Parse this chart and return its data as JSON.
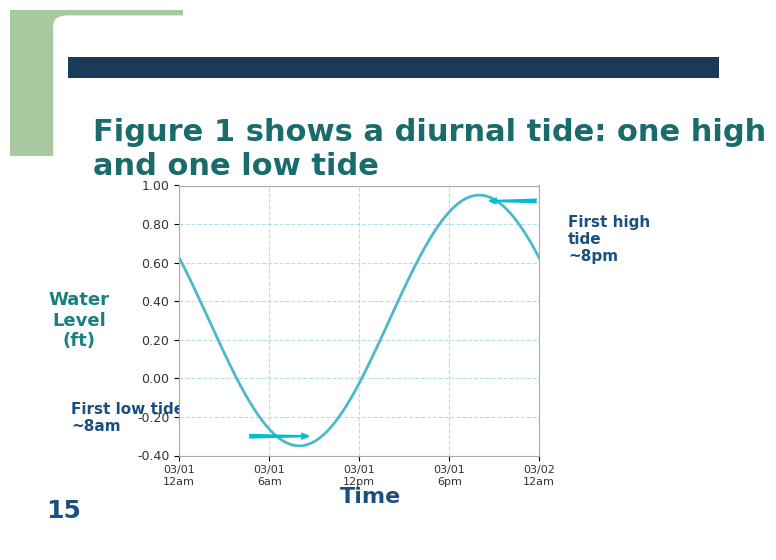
{
  "title": "Figure 1 shows a diurnal tide: one high\nand one low tide",
  "title_color": "#1a6b6b",
  "title_fontsize": 22,
  "bg_color": "#ffffff",
  "slide_bg_color": "#a8c8a0",
  "header_bar_color": "#1a3a5c",
  "xlabel": "Time",
  "xlabel_color": "#1a5080",
  "ylabel": "Water\nLevel\n(ft)",
  "ylabel_color": "#1a8080",
  "ylabel_fontsize": 13,
  "xlabel_fontsize": 16,
  "tick_labels_x": [
    "03/01\n12am",
    "03/01\n6am",
    "03/01\n12pm",
    "03/01\n6pm",
    "03/02\n12am"
  ],
  "tick_positions_x": [
    0,
    6,
    12,
    18,
    24
  ],
  "ylim": [
    -0.4,
    1.0
  ],
  "yticks": [
    -0.4,
    -0.2,
    0.0,
    0.2,
    0.4,
    0.6,
    0.8,
    1.0
  ],
  "line_color": "#4db8cc",
  "line_width": 2.0,
  "grid_color": "#aaddee",
  "annotation_high_text": "First high\ntide\n~8pm",
  "annotation_low_text": "First low tide\n~8am",
  "arrow_color": "#00bcd4",
  "annotation_color": "#1a5080",
  "chart_bg": "#ffffff",
  "number_15_color": "#1a5080",
  "number_15_size": 18
}
